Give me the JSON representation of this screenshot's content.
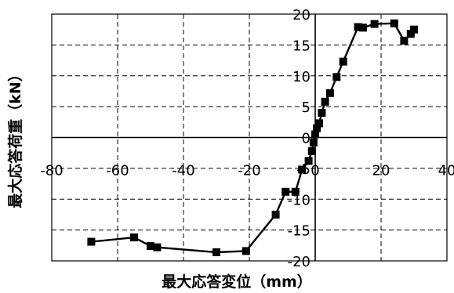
{
  "chart_data": {
    "type": "scatter",
    "title": "",
    "xlabel": "最大応答変位（mm）",
    "ylabel": "最大応答荷重（kN）",
    "xlim": [
      -80,
      40
    ],
    "ylim": [
      -20,
      20
    ],
    "xticks": [
      -80,
      -60,
      -40,
      -20,
      0,
      20,
      40
    ],
    "yticks": [
      -20,
      -15,
      -10,
      -5,
      0,
      5,
      10,
      15,
      20
    ],
    "grid": true,
    "legend": "none",
    "series": [
      {
        "marker": "square",
        "line": true,
        "color": "#000000",
        "points": [
          [
            -68,
            -16.9
          ],
          [
            -55,
            -16.2
          ],
          [
            -50,
            -17.6
          ],
          [
            -48,
            -17.8
          ],
          [
            -30,
            -18.6
          ],
          [
            -21,
            -18.4
          ],
          [
            -12,
            -12.5
          ],
          [
            -9,
            -8.8
          ],
          [
            -6,
            -8.8
          ],
          [
            -4,
            -5.2
          ],
          [
            -2,
            -3.8
          ],
          [
            -1,
            -2.2
          ],
          [
            -0.5,
            -0.8
          ],
          [
            0,
            0.5
          ],
          [
            0.5,
            1.5
          ],
          [
            1.2,
            2.3
          ],
          [
            2,
            4
          ],
          [
            3,
            5.8
          ],
          [
            4.5,
            7.2
          ],
          [
            6.5,
            9.8
          ],
          [
            8.5,
            12.3
          ],
          [
            13,
            17.9
          ],
          [
            14.5,
            17.8
          ],
          [
            18,
            18.4
          ],
          [
            24,
            18.5
          ],
          [
            27,
            15.7
          ],
          [
            29,
            16.8
          ],
          [
            30,
            17.5
          ]
        ]
      }
    ]
  }
}
